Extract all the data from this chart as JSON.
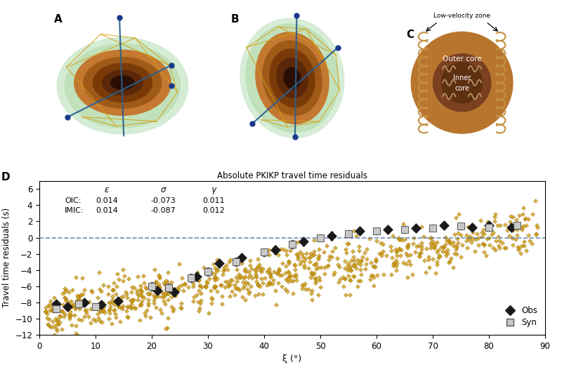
{
  "title_D": "Absolute PKIKP travel time residuals",
  "xlabel": "ξ (°)",
  "ylabel": "Travel time residuals (s)",
  "xlim": [
    0,
    90
  ],
  "ylim": [
    -12,
    7
  ],
  "yticks": [
    -12,
    -10,
    -8,
    -6,
    -4,
    -2,
    0,
    2,
    4,
    6
  ],
  "xticks": [
    0,
    10,
    20,
    30,
    40,
    50,
    60,
    70,
    80,
    90
  ],
  "text_params": {
    "header": [
      "ε",
      "σ",
      "γ"
    ],
    "OIC": [
      "OIC:",
      "0.014",
      "-0.073",
      "0.011"
    ],
    "IMIC": [
      "IMIC:",
      "0.014",
      "-0.087",
      "0.012"
    ]
  },
  "bg_color": "#ffffff",
  "scatter_color": "#c8960c",
  "scatter_edge": "#a07008",
  "obs_color": "#1a1a1a",
  "syn_color": "#c8c8c8",
  "syn_edge": "#555555",
  "green_fill": "#b8ddb0",
  "green_fill2": "#d0ead0",
  "brown_outer": "#b8762a",
  "brown_mid": "#9a5a1a",
  "brown_inner": "#7a3a0a",
  "brown_hole": "#3a1a05",
  "coil_color": "#c49040",
  "squiggle_color": "#b89060",
  "blue_dot": "#1a3a8a",
  "teal_line": "#2a6090",
  "yellow_line": "#d4a010"
}
